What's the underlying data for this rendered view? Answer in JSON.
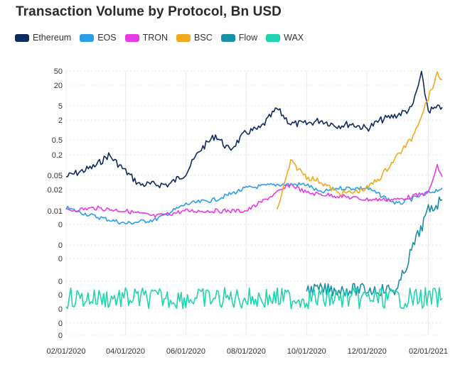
{
  "chart_data": {
    "type": "line",
    "title": "Transaction Volume by Protocol, Bn USD",
    "xlabel": "",
    "ylabel": "",
    "y_scale": "log",
    "x_tick_labels": [
      "02/01/2020",
      "04/01/2020",
      "06/01/2020",
      "08/01/2020",
      "10/01/2020",
      "12/01/2020",
      "02/01/2021"
    ],
    "y_tick_labels": [
      "50",
      "20",
      "5",
      "2",
      "0.5",
      "0.2",
      "0.05",
      "0.02",
      "0.01",
      "0",
      "0",
      "0",
      "0",
      "0",
      "0",
      "0",
      "0"
    ],
    "grid": true,
    "legend_position": "top-left",
    "series": [
      {
        "name": "Ethereum",
        "color": "#0f2a5c",
        "points": [
          [
            "2020-02-01",
            0.08
          ],
          [
            "2020-03-01",
            0.15
          ],
          [
            "2020-03-15",
            0.3
          ],
          [
            "2020-04-15",
            0.05
          ],
          [
            "2020-05-15",
            0.05
          ],
          [
            "2020-06-01",
            0.1
          ],
          [
            "2020-06-15",
            0.4
          ],
          [
            "2020-07-01",
            1.0
          ],
          [
            "2020-07-15",
            0.4
          ],
          [
            "2020-08-01",
            1.2
          ],
          [
            "2020-08-15",
            1.5
          ],
          [
            "2020-09-01",
            5.0
          ],
          [
            "2020-09-15",
            2.0
          ],
          [
            "2020-10-01",
            2.0
          ],
          [
            "2020-10-15",
            2.5
          ],
          [
            "2020-11-01",
            1.8
          ],
          [
            "2020-11-15",
            2.0
          ],
          [
            "2020-12-01",
            1.5
          ],
          [
            "2020-12-15",
            2.5
          ],
          [
            "2021-01-01",
            3.5
          ],
          [
            "2021-01-15",
            5.0
          ],
          [
            "2021-01-25",
            40.0
          ],
          [
            "2021-02-01",
            4.5
          ],
          [
            "2021-02-15",
            5.5
          ]
        ]
      },
      {
        "name": "EOS",
        "color": "#2a9fe8",
        "points": [
          [
            "2020-02-01",
            0.012
          ],
          [
            "2020-03-01",
            0.008
          ],
          [
            "2020-04-01",
            0.006
          ],
          [
            "2020-05-01",
            0.007
          ],
          [
            "2020-06-01",
            0.015
          ],
          [
            "2020-07-01",
            0.02
          ],
          [
            "2020-08-01",
            0.04
          ],
          [
            "2020-09-01",
            0.05
          ],
          [
            "2020-10-01",
            0.05
          ],
          [
            "2020-10-15",
            0.03
          ],
          [
            "2020-11-01",
            0.04
          ],
          [
            "2020-12-01",
            0.04
          ],
          [
            "2021-01-01",
            0.015
          ],
          [
            "2021-02-01",
            0.03
          ],
          [
            "2021-02-15",
            0.04
          ]
        ]
      },
      {
        "name": "TRON",
        "color": "#e63be6",
        "points": [
          [
            "2020-02-01",
            0.01
          ],
          [
            "2020-03-01",
            0.012
          ],
          [
            "2020-04-01",
            0.01
          ],
          [
            "2020-05-01",
            0.008
          ],
          [
            "2020-06-01",
            0.01
          ],
          [
            "2020-07-01",
            0.01
          ],
          [
            "2020-08-01",
            0.01
          ],
          [
            "2020-09-01",
            0.03
          ],
          [
            "2020-09-15",
            0.05
          ],
          [
            "2020-10-01",
            0.03
          ],
          [
            "2020-11-01",
            0.025
          ],
          [
            "2020-12-01",
            0.02
          ],
          [
            "2021-01-01",
            0.02
          ],
          [
            "2021-02-01",
            0.03
          ],
          [
            "2021-02-10",
            0.15
          ],
          [
            "2021-02-15",
            0.08
          ]
        ]
      },
      {
        "name": "BSC",
        "color": "#f2a81d",
        "points": [
          [
            "2020-09-01",
            0.01
          ],
          [
            "2020-09-15",
            0.2
          ],
          [
            "2020-10-01",
            0.08
          ],
          [
            "2020-10-15",
            0.06
          ],
          [
            "2020-11-01",
            0.03
          ],
          [
            "2020-11-15",
            0.03
          ],
          [
            "2020-12-01",
            0.04
          ],
          [
            "2020-12-15",
            0.08
          ],
          [
            "2021-01-01",
            0.3
          ],
          [
            "2021-01-15",
            0.8
          ],
          [
            "2021-02-01",
            10.0
          ],
          [
            "2021-02-10",
            40.0
          ],
          [
            "2021-02-15",
            30.0
          ]
        ]
      },
      {
        "name": "Flow",
        "color": "#1a8fa8",
        "points": [
          [
            "2020-10-01",
            0.0
          ],
          [
            "2020-11-01",
            0.0
          ],
          [
            "2020-12-01",
            0.0
          ],
          [
            "2021-01-01",
            0.0
          ],
          [
            "2021-01-15",
            0.002
          ],
          [
            "2021-02-01",
            0.01
          ],
          [
            "2021-02-15",
            0.02
          ]
        ]
      },
      {
        "name": "WAX",
        "color": "#1ed6ae",
        "points": [
          [
            "2020-02-01",
            0.0
          ],
          [
            "2020-04-01",
            0.0
          ],
          [
            "2020-06-01",
            0.0
          ],
          [
            "2020-08-01",
            0.0
          ],
          [
            "2020-10-01",
            0.0
          ],
          [
            "2020-12-01",
            0.0
          ],
          [
            "2021-01-15",
            0.0
          ],
          [
            "2021-02-15",
            0.0
          ]
        ]
      }
    ]
  }
}
